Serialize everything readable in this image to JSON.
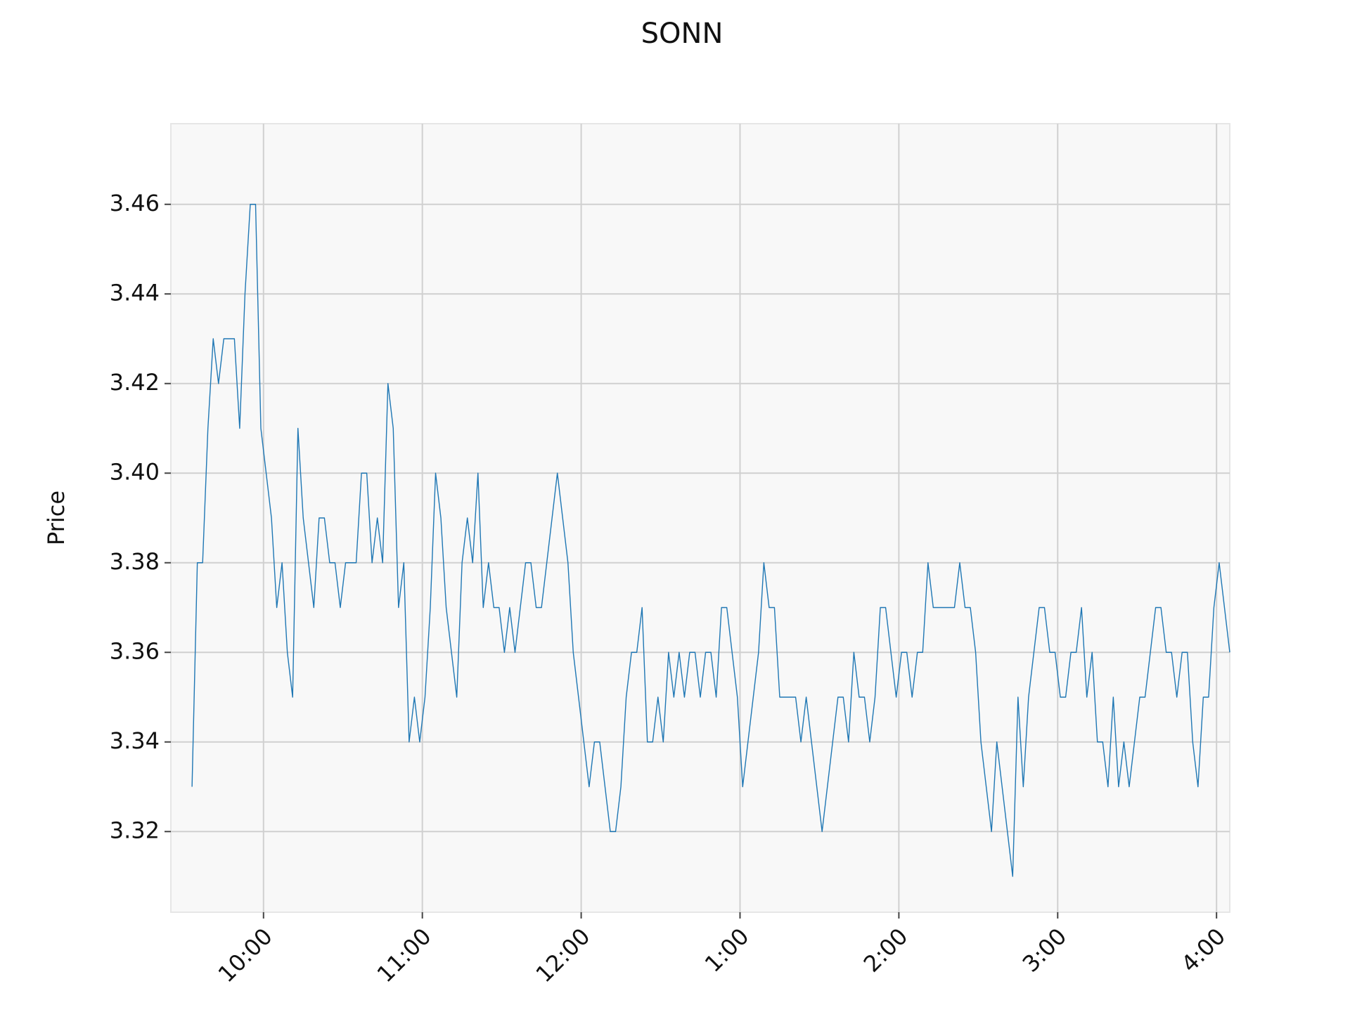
{
  "chart_data": {
    "type": "line",
    "title": "SONN",
    "y_label": "Price",
    "color": "#1f77b4",
    "grid": true,
    "xlim": [
      565,
      965
    ],
    "ylim": [
      3.302,
      3.478
    ],
    "xticks": [
      {
        "value": 600,
        "label": "10:00"
      },
      {
        "value": 660,
        "label": "11:00"
      },
      {
        "value": 720,
        "label": "12:00"
      },
      {
        "value": 780,
        "label": "1:00"
      },
      {
        "value": 840,
        "label": "2:00"
      },
      {
        "value": 900,
        "label": "3:00"
      },
      {
        "value": 960,
        "label": "4:00"
      }
    ],
    "yticks": [
      3.32,
      3.34,
      3.36,
      3.38,
      {
        "value": 3.4,
        "label": "3.40"
      },
      3.42,
      3.44,
      3.46
    ],
    "x": [
      573,
      575,
      577,
      579,
      581,
      583,
      585,
      587,
      589,
      591,
      593,
      595,
      597,
      599,
      601,
      603,
      605,
      607,
      609,
      611,
      613,
      615,
      617,
      619,
      621,
      623,
      625,
      627,
      629,
      631,
      633,
      635,
      637,
      639,
      641,
      643,
      645,
      647,
      649,
      651,
      653,
      655,
      657,
      659,
      661,
      663,
      665,
      667,
      669,
      671,
      673,
      675,
      677,
      679,
      681,
      683,
      685,
      687,
      689,
      691,
      693,
      695,
      697,
      699,
      701,
      703,
      705,
      707,
      709,
      711,
      713,
      715,
      717,
      719,
      721,
      723,
      725,
      727,
      729,
      731,
      733,
      735,
      737,
      739,
      741,
      743,
      745,
      747,
      749,
      751,
      753,
      755,
      757,
      759,
      761,
      763,
      765,
      767,
      769,
      771,
      773,
      775,
      777,
      779,
      781,
      783,
      785,
      787,
      789,
      791,
      793,
      795,
      797,
      799,
      801,
      803,
      805,
      807,
      809,
      811,
      813,
      815,
      817,
      819,
      821,
      823,
      825,
      827,
      829,
      831,
      833,
      835,
      837,
      839,
      841,
      843,
      845,
      847,
      849,
      851,
      853,
      855,
      857,
      859,
      861,
      863,
      865,
      867,
      869,
      871,
      873,
      875,
      877,
      879,
      881,
      883,
      885,
      887,
      889,
      891,
      893,
      895,
      897,
      899,
      901,
      903,
      905,
      907,
      909,
      911,
      913,
      915,
      917,
      919,
      921,
      923,
      925,
      927,
      929,
      931,
      933,
      935,
      937,
      939,
      941,
      943,
      945,
      947,
      949,
      951,
      953,
      955,
      957,
      959,
      961,
      963,
      965
    ],
    "values": [
      3.33,
      3.38,
      3.38,
      3.41,
      3.43,
      3.42,
      3.43,
      3.43,
      3.43,
      3.41,
      3.44,
      3.46,
      3.46,
      3.41,
      3.4,
      3.39,
      3.37,
      3.38,
      3.36,
      3.35,
      3.41,
      3.39,
      3.38,
      3.37,
      3.39,
      3.39,
      3.38,
      3.38,
      3.37,
      3.38,
      3.38,
      3.38,
      3.4,
      3.4,
      3.38,
      3.39,
      3.38,
      3.42,
      3.41,
      3.37,
      3.38,
      3.34,
      3.35,
      3.34,
      3.35,
      3.37,
      3.4,
      3.39,
      3.37,
      3.36,
      3.35,
      3.38,
      3.39,
      3.38,
      3.4,
      3.37,
      3.38,
      3.37,
      3.37,
      3.36,
      3.37,
      3.36,
      3.37,
      3.38,
      3.38,
      3.37,
      3.37,
      3.38,
      3.39,
      3.4,
      3.39,
      3.38,
      3.36,
      3.35,
      3.34,
      3.33,
      3.34,
      3.34,
      3.33,
      3.32,
      3.32,
      3.33,
      3.35,
      3.36,
      3.36,
      3.37,
      3.34,
      3.34,
      3.35,
      3.34,
      3.36,
      3.35,
      3.36,
      3.35,
      3.36,
      3.36,
      3.35,
      3.36,
      3.36,
      3.35,
      3.37,
      3.37,
      3.36,
      3.35,
      3.33,
      3.34,
      3.35,
      3.36,
      3.38,
      3.37,
      3.37,
      3.35,
      3.35,
      3.35,
      3.35,
      3.34,
      3.35,
      3.34,
      3.33,
      3.32,
      3.33,
      3.34,
      3.35,
      3.35,
      3.34,
      3.36,
      3.35,
      3.35,
      3.34,
      3.35,
      3.37,
      3.37,
      3.36,
      3.35,
      3.36,
      3.36,
      3.35,
      3.36,
      3.36,
      3.38,
      3.37,
      3.37,
      3.37,
      3.37,
      3.37,
      3.38,
      3.37,
      3.37,
      3.36,
      3.34,
      3.33,
      3.32,
      3.34,
      3.33,
      3.32,
      3.31,
      3.35,
      3.33,
      3.35,
      3.36,
      3.37,
      3.37,
      3.36,
      3.36,
      3.35,
      3.35,
      3.36,
      3.36,
      3.37,
      3.35,
      3.36,
      3.34,
      3.34,
      3.33,
      3.35,
      3.33,
      3.34,
      3.33,
      3.34,
      3.35,
      3.35,
      3.36,
      3.37,
      3.37,
      3.36,
      3.36,
      3.35,
      3.36,
      3.36,
      3.34,
      3.33,
      3.35,
      3.35,
      3.37,
      3.38,
      3.37,
      3.36
    ]
  }
}
